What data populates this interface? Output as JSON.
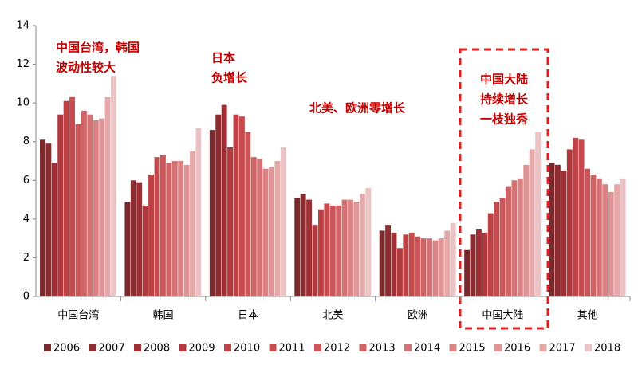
{
  "chart_data": {
    "type": "bar",
    "categories": [
      "中国台湾",
      "韩国",
      "日本",
      "北美",
      "欧洲",
      "中国大陆",
      "其他"
    ],
    "series": [
      {
        "name": "2006",
        "color": "#7a2a2d",
        "values": [
          8.1,
          4.9,
          8.6,
          5.1,
          3.4,
          2.4,
          6.9
        ]
      },
      {
        "name": "2007",
        "color": "#8a2c30",
        "values": [
          7.9,
          6.0,
          9.4,
          5.3,
          3.7,
          3.2,
          6.8
        ]
      },
      {
        "name": "2008",
        "color": "#9e3035",
        "values": [
          6.9,
          5.9,
          9.9,
          5.0,
          3.3,
          3.5,
          6.5
        ]
      },
      {
        "name": "2009",
        "color": "#b0393d",
        "values": [
          9.4,
          4.7,
          7.7,
          3.7,
          2.5,
          3.3,
          7.6
        ]
      },
      {
        "name": "2010",
        "color": "#bd4145",
        "values": [
          10.1,
          6.3,
          9.4,
          4.5,
          3.2,
          4.3,
          8.2
        ]
      },
      {
        "name": "2011",
        "color": "#c54b4f",
        "values": [
          10.3,
          7.2,
          9.3,
          4.8,
          3.3,
          4.9,
          8.1
        ]
      },
      {
        "name": "2012",
        "color": "#cb5659",
        "values": [
          8.9,
          7.3,
          8.5,
          4.7,
          3.1,
          5.1,
          6.6
        ]
      },
      {
        "name": "2013",
        "color": "#cf6466",
        "values": [
          9.6,
          6.9,
          7.2,
          4.7,
          3.0,
          5.7,
          6.3
        ]
      },
      {
        "name": "2014",
        "color": "#d47375",
        "values": [
          9.4,
          7.0,
          7.1,
          5.0,
          3.0,
          6.0,
          6.1
        ]
      },
      {
        "name": "2015",
        "color": "#d98385",
        "values": [
          9.1,
          7.0,
          6.6,
          5.0,
          2.9,
          6.1,
          5.8
        ]
      },
      {
        "name": "2016",
        "color": "#df9597",
        "values": [
          9.2,
          6.8,
          6.7,
          4.9,
          3.0,
          6.8,
          5.4
        ]
      },
      {
        "name": "2017",
        "color": "#e5a9aa",
        "values": [
          10.3,
          7.5,
          7.0,
          5.3,
          3.4,
          7.6,
          5.8
        ]
      },
      {
        "name": "2018",
        "color": "#ebc3c4",
        "values": [
          11.4,
          8.7,
          7.7,
          5.6,
          3.8,
          8.5,
          6.1
        ]
      }
    ],
    "ylim": [
      0,
      14
    ],
    "yticks": [
      0,
      2,
      4,
      6,
      8,
      10,
      12,
      14
    ],
    "annotations": [
      {
        "lines": [
          "中国台湾，韩国",
          "波动性较大"
        ]
      },
      {
        "lines": [
          "日本",
          "负增长"
        ]
      },
      {
        "lines": [
          "北美、欧洲零增长"
        ]
      },
      {
        "lines": [
          "中国大陆",
          "持续增长",
          "一枝独秀"
        ]
      }
    ]
  }
}
